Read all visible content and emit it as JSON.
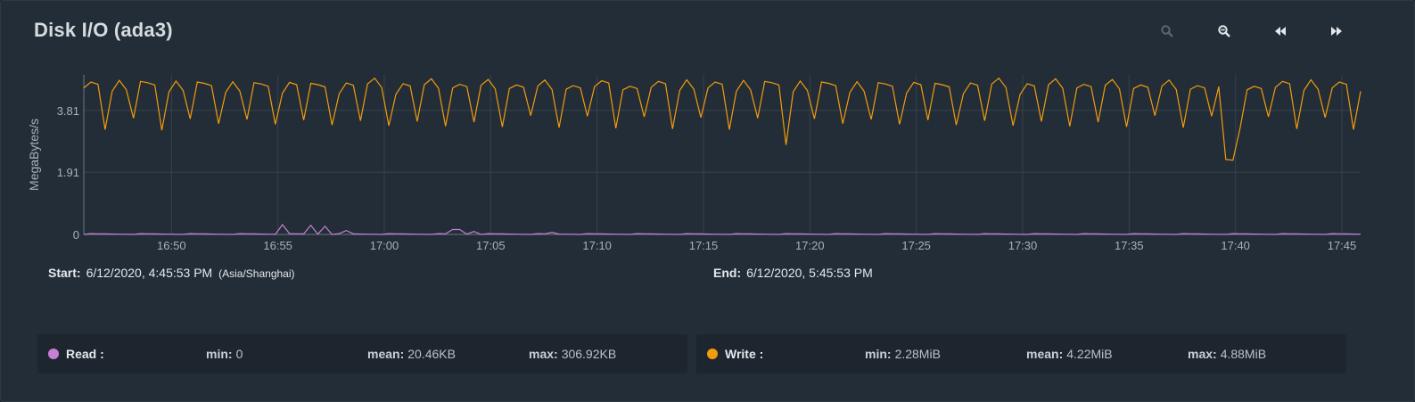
{
  "widget": {
    "title": "Disk I/O (ada3)"
  },
  "toolbar": {
    "zoom_in_icon": "zoom-in-icon",
    "zoom_out_icon": "zoom-out-icon",
    "back_icon": "rewind-icon",
    "forward_icon": "fast-forward-icon"
  },
  "range": {
    "start_label": "Start:",
    "start_value": "6/12/2020, 4:45:53 PM",
    "timezone": "(Asia/Shanghai)",
    "end_label": "End:",
    "end_value": "6/12/2020, 5:45:53 PM"
  },
  "legend": {
    "read": {
      "name": "Read :",
      "color": "#c77fd4",
      "min_label": "min:",
      "min": "0",
      "mean_label": "mean:",
      "mean": "20.46KB",
      "max_label": "max:",
      "max": "306.92KB"
    },
    "write": {
      "name": "Write :",
      "color": "#f29b0c",
      "min_label": "min:",
      "min": "2.28MiB",
      "mean_label": "mean:",
      "mean": "4.22MiB",
      "max_label": "max:",
      "max": "4.88MiB"
    }
  },
  "chart_data": {
    "type": "line",
    "ylabel": "MegaBytes/s",
    "y_ticks": [
      0,
      1.91,
      3.81
    ],
    "y_tick_labels": [
      "0",
      "1.91",
      "3.81"
    ],
    "ylim": [
      0,
      4.9
    ],
    "x_ticks": [
      "16:50",
      "16:55",
      "17:00",
      "17:05",
      "17:10",
      "17:15",
      "17:20",
      "17:25",
      "17:30",
      "17:35",
      "17:40",
      "17:45"
    ],
    "x_tick_minutes": [
      4.12,
      9.12,
      14.12,
      19.12,
      24.12,
      29.12,
      34.12,
      39.12,
      44.12,
      49.12,
      54.12,
      59.12
    ],
    "xlim_minutes": [
      0,
      60
    ],
    "grid": true,
    "series": [
      {
        "name": "Write",
        "color": "#f29b0c",
        "pattern": {
          "period_s": 20,
          "base": [
            4.6,
            4.7,
            4.55,
            3.3,
            4.4,
            4.65,
            4.5,
            3.55
          ],
          "dips": [
            {
              "minute": 32.8,
              "value": 2.8
            },
            {
              "minute": 33.0,
              "value": 2.75
            },
            {
              "minute": 53.7,
              "value": 2.3
            },
            {
              "minute": 54.1,
              "value": 2.28
            }
          ]
        }
      },
      {
        "name": "Read",
        "color": "#c77fd4",
        "spikes": [
          {
            "minute": 9.4,
            "value": 0.3
          },
          {
            "minute": 10.8,
            "value": 0.28
          },
          {
            "minute": 11.4,
            "value": 0.25
          },
          {
            "minute": 12.3,
            "value": 0.12
          },
          {
            "minute": 17.5,
            "value": 0.15
          },
          {
            "minute": 18.2,
            "value": 0.09
          },
          {
            "minute": 21.9,
            "value": 0.06
          }
        ]
      }
    ]
  }
}
